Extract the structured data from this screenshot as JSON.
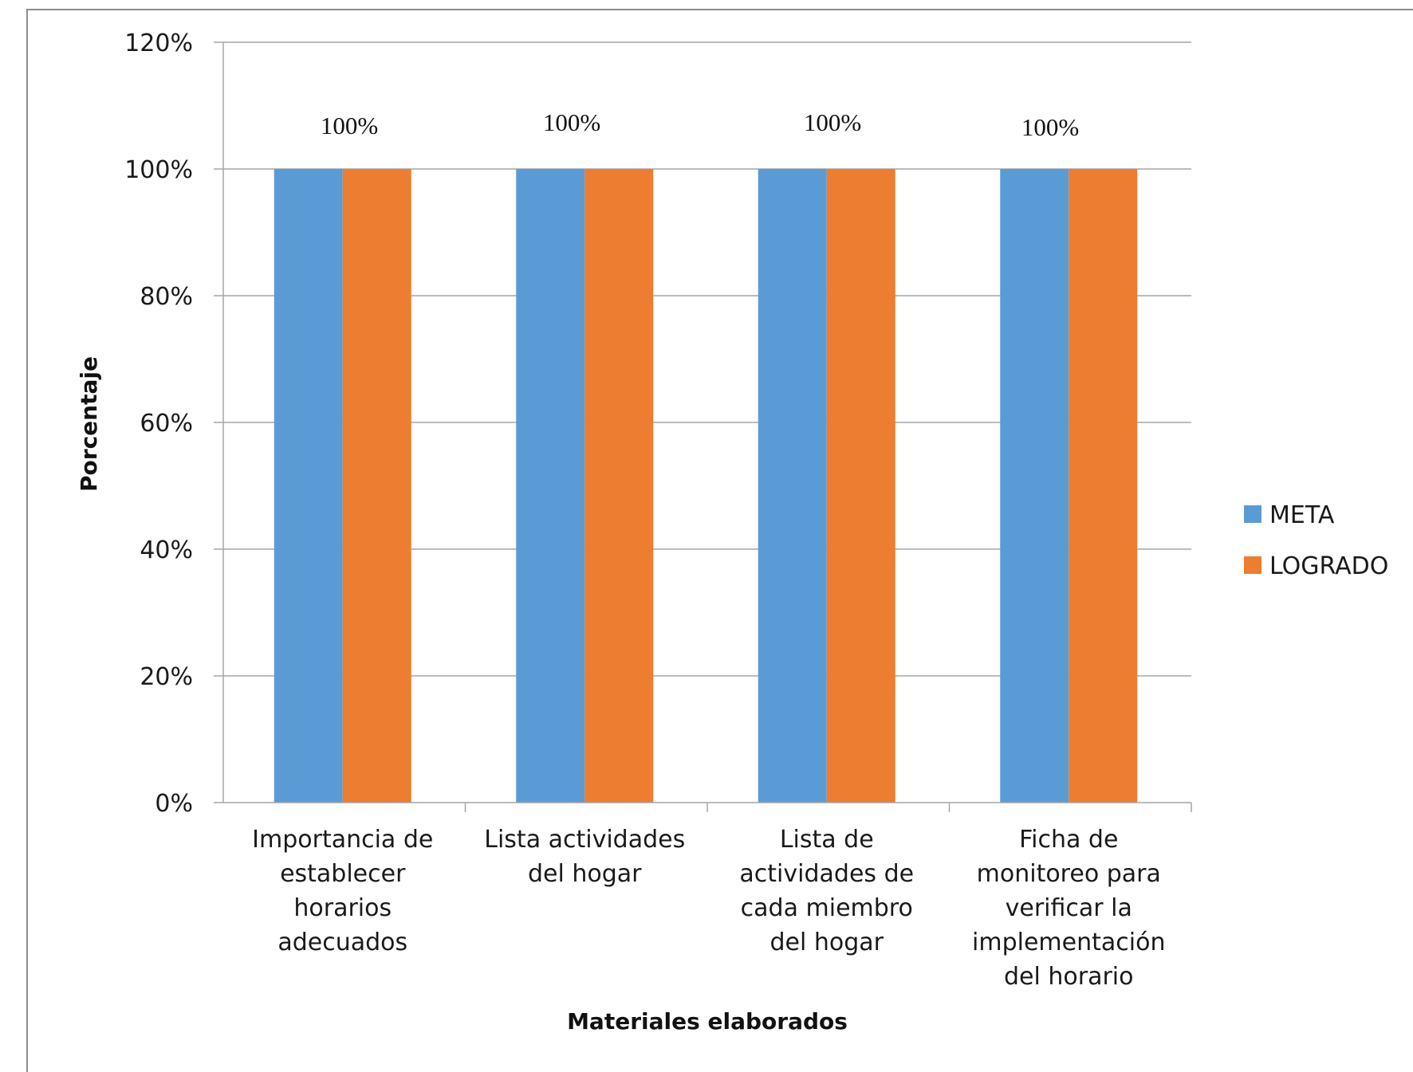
{
  "chart_data": {
    "type": "bar",
    "categories": [
      [
        "Importancia de",
        "establecer",
        "horarios",
        "adecuados"
      ],
      [
        "Lista actividades",
        "del  hogar"
      ],
      [
        "Lista de",
        "actividades de",
        "cada miembro",
        "del hogar"
      ],
      [
        "Ficha de",
        "monitoreo para",
        "verificar la",
        "implementación",
        "del horario"
      ]
    ],
    "series": [
      {
        "name": "META",
        "values": [
          1.0,
          1.0,
          1.0,
          1.0
        ],
        "color": "#5B9BD5"
      },
      {
        "name": "LOGRADO",
        "values": [
          1.0,
          1.0,
          1.0,
          1.0
        ],
        "color": "#ED7D31"
      }
    ],
    "data_labels": [
      "100%",
      "100%",
      "100%",
      "100%"
    ],
    "xlabel": "Materiales elaborados",
    "ylabel": "Porcentaje",
    "ylim": [
      0,
      1.2
    ],
    "yticks": [
      0,
      0.2,
      0.4,
      0.6,
      0.8,
      1.0,
      1.2
    ],
    "ytick_labels": [
      "0%",
      "20%",
      "40%",
      "60%",
      "80%",
      "100%",
      "120%"
    ],
    "grid": true,
    "legend": "right",
    "gridline_color": "#A6A6A6",
    "frame_color": "#8C8C8C"
  }
}
